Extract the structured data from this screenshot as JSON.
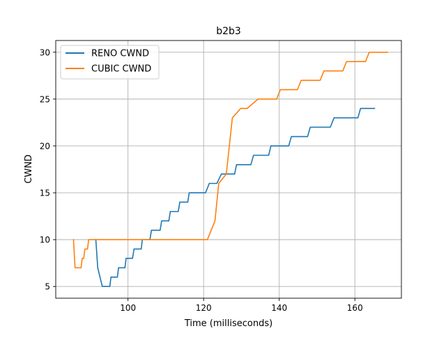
{
  "chart_data": {
    "type": "line",
    "title": "b2b3",
    "xlabel": "Time (milliseconds)",
    "ylabel": "CWND",
    "xlim": [
      80.9,
      172.3
    ],
    "ylim": [
      3.75,
      31.25
    ],
    "xticks": [
      100,
      120,
      140,
      160
    ],
    "yticks": [
      5,
      10,
      15,
      20,
      25,
      30
    ],
    "grid": true,
    "legend_position": "top-left",
    "series": [
      {
        "name": "RENO CWND",
        "color": "#1f77b4",
        "points": [
          [
            91.5,
            10
          ],
          [
            92,
            7
          ],
          [
            93.2,
            5
          ],
          [
            95.2,
            5
          ],
          [
            95.5,
            6
          ],
          [
            97.2,
            6
          ],
          [
            97.5,
            7
          ],
          [
            99.2,
            7
          ],
          [
            99.5,
            8
          ],
          [
            101.2,
            8
          ],
          [
            101.6,
            9
          ],
          [
            103.5,
            9
          ],
          [
            103.8,
            10
          ],
          [
            105.8,
            10
          ],
          [
            106.2,
            11
          ],
          [
            108.5,
            11
          ],
          [
            108.9,
            12
          ],
          [
            110.8,
            12
          ],
          [
            111.2,
            13
          ],
          [
            113.3,
            13
          ],
          [
            113.7,
            14
          ],
          [
            115.8,
            14
          ],
          [
            116.2,
            15
          ],
          [
            118.8,
            15
          ],
          [
            119.2,
            15
          ],
          [
            120.5,
            15
          ],
          [
            121.5,
            16
          ],
          [
            123.5,
            16
          ],
          [
            124.7,
            17
          ],
          [
            127.2,
            17
          ],
          [
            127.5,
            17
          ],
          [
            128.2,
            17
          ],
          [
            128.7,
            18
          ],
          [
            132.5,
            18
          ],
          [
            133.2,
            19
          ],
          [
            137.2,
            19
          ],
          [
            137.8,
            20
          ],
          [
            142.5,
            20
          ],
          [
            143.2,
            21
          ],
          [
            147.5,
            21
          ],
          [
            148.2,
            22
          ],
          [
            153.5,
            22
          ],
          [
            154.5,
            23
          ],
          [
            160.8,
            23
          ],
          [
            161.5,
            24
          ],
          [
            165.2,
            24
          ]
        ]
      },
      {
        "name": "CUBIC CWND",
        "color": "#ff7f0e",
        "points": [
          [
            85.6,
            10
          ],
          [
            86,
            7
          ],
          [
            87.6,
            7
          ],
          [
            87.9,
            8
          ],
          [
            88.3,
            8
          ],
          [
            88.6,
            9
          ],
          [
            89.3,
            9
          ],
          [
            89.6,
            10
          ],
          [
            121,
            10
          ],
          [
            123,
            12
          ],
          [
            124,
            16
          ],
          [
            126,
            17
          ],
          [
            127.6,
            23
          ],
          [
            129.8,
            24
          ],
          [
            131.5,
            24
          ],
          [
            134.4,
            25
          ],
          [
            139.3,
            25
          ],
          [
            140.3,
            26
          ],
          [
            144.8,
            26
          ],
          [
            145.8,
            27
          ],
          [
            150.8,
            27
          ],
          [
            151.8,
            28
          ],
          [
            156.8,
            28
          ],
          [
            157.8,
            29
          ],
          [
            162.8,
            29
          ],
          [
            163.8,
            30
          ],
          [
            168.6,
            30
          ]
        ]
      }
    ]
  }
}
